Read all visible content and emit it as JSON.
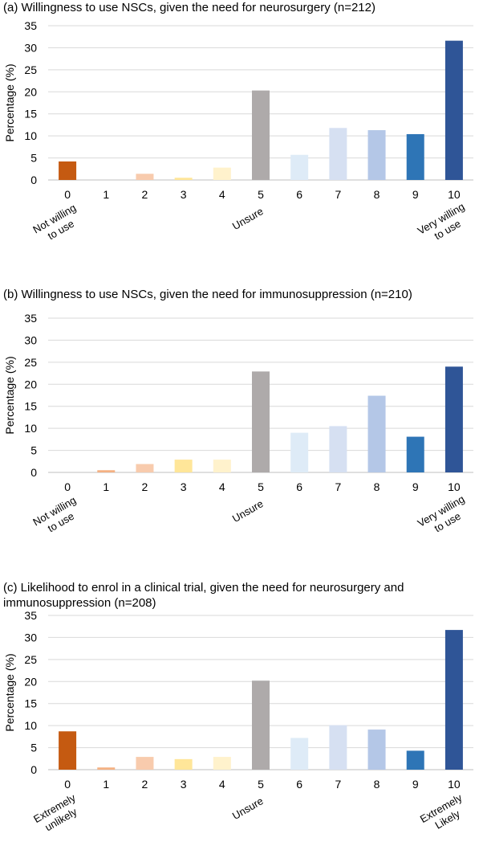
{
  "chart_data": [
    {
      "type": "bar",
      "title": "(a) Willingness to use NSCs, given the need for neurosurgery (n=212)",
      "ylabel": "Percentage (%)",
      "ylim": [
        0,
        35
      ],
      "yticks": [
        0,
        5,
        10,
        15,
        20,
        25,
        30,
        35
      ],
      "grid": true,
      "categories": [
        "0",
        "1",
        "2",
        "3",
        "4",
        "5",
        "6",
        "7",
        "8",
        "9",
        "10"
      ],
      "values": [
        4.2,
        0,
        1.4,
        0.5,
        2.8,
        20.3,
        5.7,
        11.8,
        11.3,
        10.4,
        31.6
      ],
      "colors": [
        "#c55a11",
        "#f4b183",
        "#f8cbad",
        "#ffe699",
        "#fff2cc",
        "#aeaaaa",
        "#deebf7",
        "#d6e0f2",
        "#b4c7e7",
        "#2e75b6",
        "#2f5597"
      ],
      "annotations": [
        {
          "category": "0",
          "lines": [
            "Not willing",
            "to use"
          ]
        },
        {
          "category": "5",
          "lines": [
            "Unsure"
          ]
        },
        {
          "category": "10",
          "lines": [
            "Very willing",
            "to use"
          ]
        }
      ]
    },
    {
      "type": "bar",
      "title": "(b) Willingness to use NSCs, given the need for immunosuppression (n=210)",
      "ylabel": "Percentage (%)",
      "ylim": [
        0,
        35
      ],
      "yticks": [
        0,
        5,
        10,
        15,
        20,
        25,
        30,
        35
      ],
      "grid": true,
      "categories": [
        "0",
        "1",
        "2",
        "3",
        "4",
        "5",
        "6",
        "7",
        "8",
        "9",
        "10"
      ],
      "values": [
        0,
        0.5,
        1.9,
        2.9,
        2.9,
        22.9,
        9.0,
        10.5,
        17.4,
        8.1,
        24.0
      ],
      "colors": [
        "#c55a11",
        "#f4b183",
        "#f8cbad",
        "#ffe699",
        "#fff2cc",
        "#aeaaaa",
        "#deebf7",
        "#d6e0f2",
        "#b4c7e7",
        "#2e75b6",
        "#2f5597"
      ],
      "annotations": [
        {
          "category": "0",
          "lines": [
            "Not willing",
            "to use"
          ]
        },
        {
          "category": "5",
          "lines": [
            "Unsure"
          ]
        },
        {
          "category": "10",
          "lines": [
            "Very willing",
            "to use"
          ]
        }
      ]
    },
    {
      "type": "bar",
      "title": "(c) Likelihood to enrol in a clinical trial, given the need for neurosurgery and immunosuppression (n=208)",
      "ylabel": "Percentage (%)",
      "ylim": [
        0,
        35
      ],
      "yticks": [
        0,
        5,
        10,
        15,
        20,
        25,
        30,
        35
      ],
      "grid": true,
      "categories": [
        "0",
        "1",
        "2",
        "3",
        "4",
        "5",
        "6",
        "7",
        "8",
        "9",
        "10"
      ],
      "values": [
        8.7,
        0.5,
        2.9,
        2.4,
        2.9,
        20.2,
        7.2,
        10.1,
        9.1,
        4.3,
        31.7
      ],
      "colors": [
        "#c55a11",
        "#f4b183",
        "#f8cbad",
        "#ffe699",
        "#fff2cc",
        "#aeaaaa",
        "#deebf7",
        "#d6e0f2",
        "#b4c7e7",
        "#2e75b6",
        "#2f5597"
      ],
      "annotations": [
        {
          "category": "0",
          "lines": [
            "Extremely",
            "unlikely"
          ]
        },
        {
          "category": "5",
          "lines": [
            "Unsure"
          ]
        },
        {
          "category": "10",
          "lines": [
            "Extremely",
            "Likely"
          ]
        }
      ]
    }
  ]
}
